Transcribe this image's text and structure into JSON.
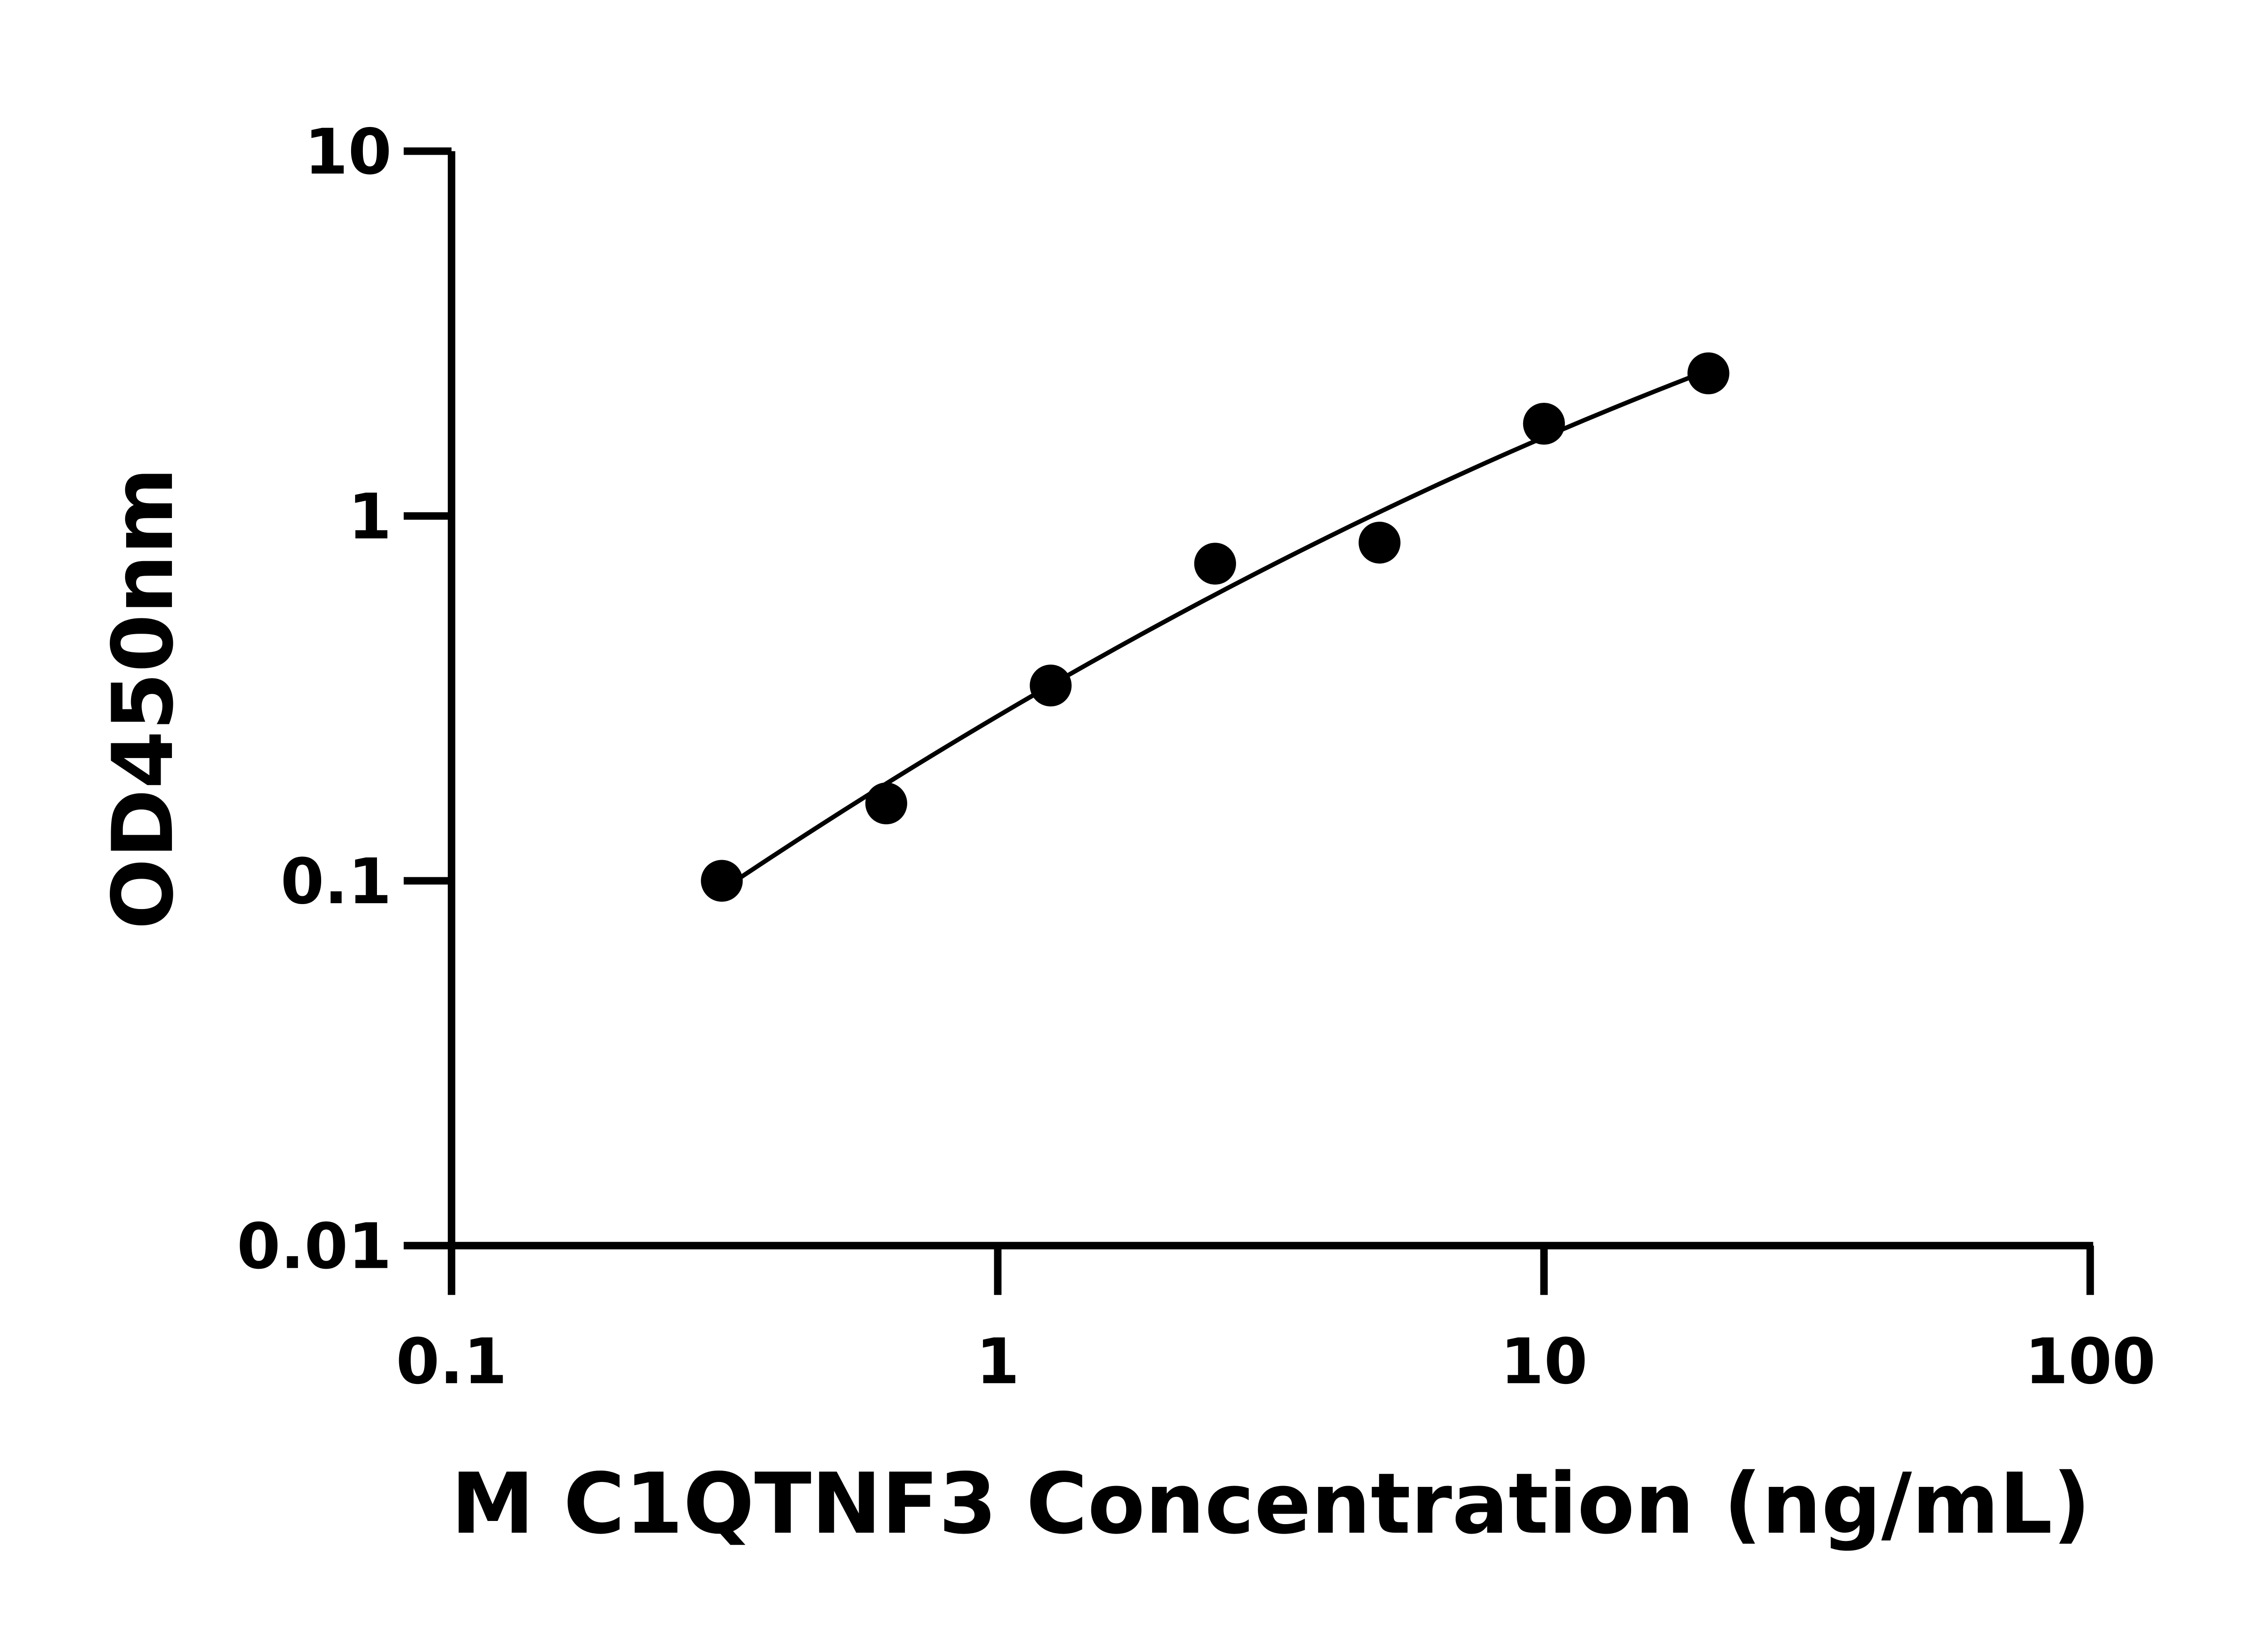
{
  "chart_data": {
    "type": "scatter",
    "title": "",
    "xlabel": "M C1QTNF3 Concentration (ng/mL)",
    "ylabel": "OD450nm",
    "x_scale": "log",
    "y_scale": "log",
    "xlim": [
      0.1,
      100
    ],
    "ylim": [
      0.01,
      10
    ],
    "x_ticks": [
      "0.1",
      "1",
      "10",
      "100"
    ],
    "y_ticks": [
      "0.01",
      "0.1",
      "1",
      "10"
    ],
    "x_tick_values": [
      0.1,
      1,
      10,
      100
    ],
    "y_tick_values": [
      0.01,
      0.1,
      1,
      10
    ],
    "grid": false,
    "fit_curve": true,
    "series": [
      {
        "x": [
          0.3125,
          0.625,
          1.25,
          2.5,
          5,
          10,
          20
        ],
        "y": [
          0.1,
          0.163,
          0.343,
          0.74,
          0.845,
          1.79,
          2.46
        ]
      }
    ],
    "colors": {
      "points": "#000000",
      "line": "#000000"
    }
  }
}
